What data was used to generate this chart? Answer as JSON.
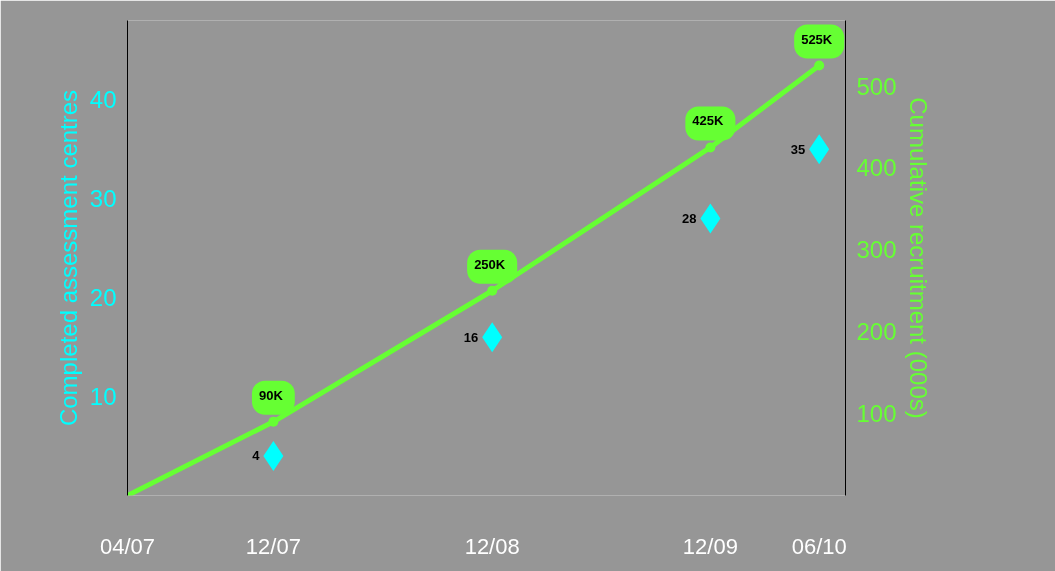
{
  "chart_data": {
    "type": "line",
    "ylabel": "Completed assessment centres",
    "y2label": "Cumulative recruitment (000s)",
    "x": [
      "2007-04",
      "2007-12",
      "2008-12",
      "2009-12",
      "2010-06"
    ],
    "xlim": [
      "2007-04",
      "2010-07-15"
    ],
    "xticks": [
      {
        "value": "2007-04",
        "label": "04/07"
      },
      {
        "value": "2007-12",
        "label": "12/07"
      },
      {
        "value": "2008-12",
        "label": "12/08"
      },
      {
        "value": "2009-12",
        "label": "12/09"
      },
      {
        "value": "2010-06",
        "label": "06/10"
      }
    ],
    "ylim": [
      0,
      48
    ],
    "yticks": [
      10,
      20,
      30,
      40
    ],
    "y2lim": [
      0,
      580
    ],
    "y2ticks": [
      100,
      200,
      300,
      400,
      500
    ],
    "grid": false,
    "series": [
      {
        "axis": "y2",
        "marker": "circle",
        "color": "#66ff33",
        "values": [
          0,
          90,
          250,
          425,
          525
        ],
        "value_labels": [
          null,
          "90K",
          "250K",
          "425K",
          "525K"
        ]
      },
      {
        "type": "scatter",
        "marker": "diamond",
        "color": "#00ffff",
        "x": [
          "2007-12",
          "2008-12",
          "2009-12",
          "2010-06"
        ],
        "values": [
          4,
          16,
          28,
          35
        ],
        "data_labels": true
      }
    ]
  }
}
